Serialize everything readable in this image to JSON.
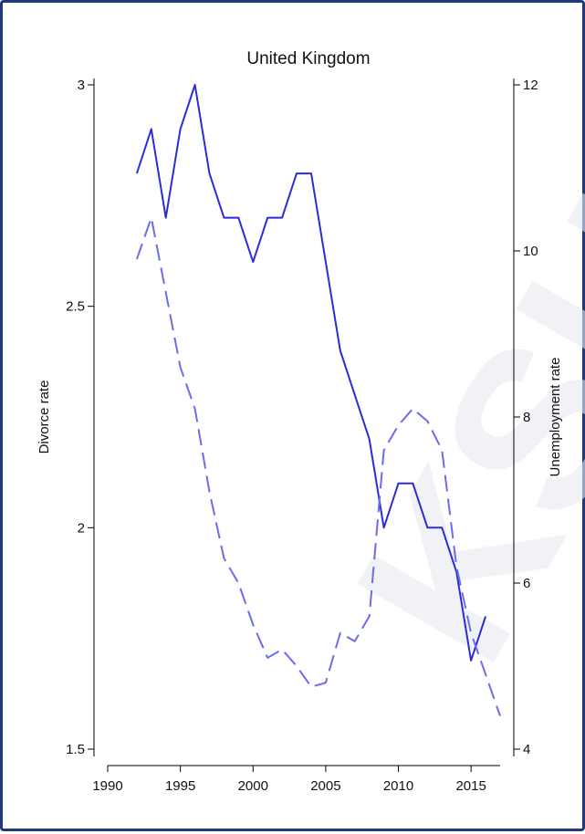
{
  "watermark_text": "KSH KÖ",
  "chart_data": {
    "type": "line",
    "title": "United Kingdom",
    "xlabel": "",
    "ylabel": "Divorce rate",
    "y2label": "Unemployment rate",
    "xlim": [
      1990,
      2017
    ],
    "ylim": [
      1.5,
      3
    ],
    "y2lim": [
      4,
      12
    ],
    "x_ticks": [
      1990,
      1995,
      2000,
      2005,
      2010,
      2015
    ],
    "y_ticks": [
      1.5,
      2,
      2.5,
      3
    ],
    "y_tick_labels": [
      "1.5",
      "2",
      "2.5",
      "3"
    ],
    "y2_ticks": [
      4,
      6,
      8,
      10,
      12
    ],
    "grid": false,
    "series": [
      {
        "axis": "left",
        "style": "solid",
        "color": "#2b2bd9",
        "x": [
          1992,
          1993,
          1994,
          1995,
          1996,
          1997,
          1998,
          1999,
          2000,
          2001,
          2002,
          2003,
          2004,
          2005,
          2006,
          2007,
          2008,
          2009,
          2010,
          2011,
          2012,
          2013,
          2014,
          2015,
          2016
        ],
        "values": [
          2.8,
          2.9,
          2.7,
          2.9,
          3.0,
          2.8,
          2.7,
          2.7,
          2.6,
          2.7,
          2.7,
          2.8,
          2.8,
          2.6,
          2.4,
          2.3,
          2.2,
          2.0,
          2.1,
          2.1,
          2.0,
          2.0,
          1.9,
          1.7,
          1.8
        ]
      },
      {
        "axis": "right",
        "style": "dashed",
        "color": "#6b6bee",
        "x": [
          1992,
          1993,
          1994,
          1995,
          1996,
          1997,
          1998,
          1999,
          2000,
          2001,
          2002,
          2003,
          2004,
          2005,
          2006,
          2007,
          2008,
          2009,
          2010,
          2011,
          2012,
          2013,
          2014,
          2015,
          2016,
          2017
        ],
        "values": [
          9.9,
          10.4,
          9.5,
          8.6,
          8.1,
          7.1,
          6.3,
          6.0,
          5.5,
          5.1,
          5.2,
          5.0,
          4.75,
          4.8,
          5.4,
          5.3,
          5.6,
          7.6,
          7.9,
          8.1,
          7.95,
          7.6,
          6.2,
          5.4,
          4.9,
          4.4
        ]
      }
    ]
  }
}
